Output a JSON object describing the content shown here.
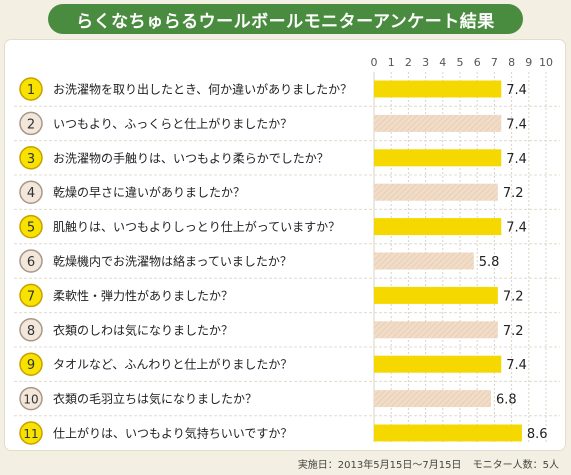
{
  "title": "らくなちゅらるウールボールモニターアンケート結果",
  "footnote": {
    "period": "実施日：2013年5月15日〜7月15日",
    "monitors": "モニター人数：5人"
  },
  "colors": {
    "title_bg": "#4a8c3f",
    "bar_yellow": "#f5d800",
    "bar_beige": "#f1dcc8",
    "badge_yellow": "#f7e200",
    "badge_gold_border": "#c8a000",
    "badge_beige": "#f3e6da",
    "badge_beige_border": "#a89888"
  },
  "chart_data": {
    "type": "bar",
    "orientation": "horizontal",
    "xlim": [
      0,
      10
    ],
    "x_ticks": [
      "0",
      "1",
      "2",
      "3",
      "4",
      "5",
      "6",
      "7",
      "8",
      "9",
      "10"
    ],
    "grid": true,
    "rows": [
      {
        "number": "1",
        "question": "お洗濯物を取り出したとき、何か違いがありましたか？",
        "value": 7.4,
        "label": "7.4"
      },
      {
        "number": "2",
        "question": "いつもより、ふっくらと仕上がりましたか？",
        "value": 7.4,
        "label": "7.4"
      },
      {
        "number": "3",
        "question": "お洗濯物の手触りは、いつもより柔らかでしたか？",
        "value": 7.4,
        "label": "7.4"
      },
      {
        "number": "4",
        "question": "乾燥の早さに違いがありましたか？",
        "value": 7.2,
        "label": "7.2"
      },
      {
        "number": "5",
        "question": "肌触りは、いつもよりしっとり仕上がっていますか？",
        "value": 7.4,
        "label": "7.4"
      },
      {
        "number": "6",
        "question": "乾燥機内でお洗濯物は絡まっていましたか？",
        "value": 5.8,
        "label": "5.8"
      },
      {
        "number": "7",
        "question": "柔軟性・弾力性がありましたか？",
        "value": 7.2,
        "label": "7.2"
      },
      {
        "number": "8",
        "question": "衣類のしわは気になりましたか？",
        "value": 7.2,
        "label": "7.2"
      },
      {
        "number": "9",
        "question": "タオルなど、ふんわりと仕上がりましたか？",
        "value": 7.4,
        "label": "7.4"
      },
      {
        "number": "10",
        "question": "衣類の毛羽立ちは気になりましたか？",
        "value": 6.8,
        "label": "6.8"
      },
      {
        "number": "11",
        "question": "仕上がりは、いつもより気持ちいいですか？",
        "value": 8.6,
        "label": "8.6"
      }
    ]
  }
}
